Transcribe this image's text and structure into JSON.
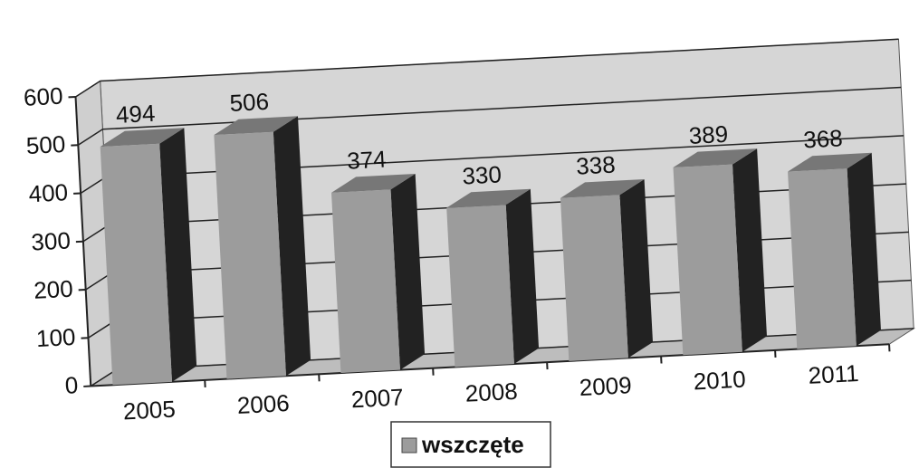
{
  "chart_data": {
    "type": "bar3d",
    "categories": [
      "2005",
      "2006",
      "2007",
      "2008",
      "2009",
      "2010",
      "2011"
    ],
    "series": [
      {
        "name": "wszczęte",
        "color": "#9c9c9c",
        "values": [
          494,
          506,
          374,
          330,
          338,
          389,
          368
        ]
      }
    ],
    "ylim": [
      0,
      600
    ],
    "yticks": [
      0,
      100,
      200,
      300,
      400,
      500,
      600
    ],
    "grid": true,
    "legend": "bottom"
  }
}
